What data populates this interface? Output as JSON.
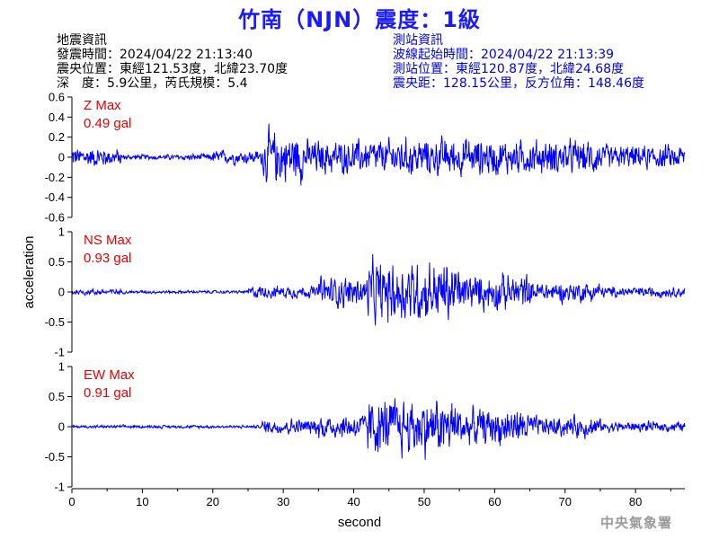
{
  "title": "竹南（NJN）震度：1級",
  "quake_info": {
    "heading": "地震資訊",
    "time": "發震時間：2024/04/22 21:13:40",
    "epicenter": "震央位置：東經121.53度，北緯23.70度",
    "depth_mag": "深　度：5.9公里，芮氏規模：5.4"
  },
  "station_info": {
    "heading": "測站資訊",
    "wave_start": "波線起始時間：2024/04/22 21:13:39",
    "location": "測站位置：東經120.87度，北緯24.68度",
    "distance": "震央距：128.15公里，反方位角：148.46度"
  },
  "credit": "中央氣象署",
  "colors": {
    "title": "#1a1aff",
    "trace": "#0000ff",
    "max_label": "#e60000",
    "station_text": "#0000e6"
  },
  "chart_data": [
    {
      "type": "line",
      "component": "Z",
      "max_label": "Z Max",
      "max_value": "0.49 gal",
      "ylim": [
        -0.6,
        0.6
      ],
      "yticks": [
        "0.6",
        "0.4",
        "0.2",
        "0",
        "-0.2",
        "-0.4",
        "-0.6"
      ],
      "xlim": [
        0,
        87
      ],
      "segments": [
        {
          "start": 0,
          "end": 5,
          "amp": 0.12
        },
        {
          "start": 5,
          "end": 7,
          "amp": 0.1
        },
        {
          "start": 7,
          "end": 15,
          "amp": 0.03
        },
        {
          "start": 15,
          "end": 20,
          "amp": 0.04
        },
        {
          "start": 20,
          "end": 25,
          "amp": 0.08
        },
        {
          "start": 25,
          "end": 27,
          "amp": 0.08
        },
        {
          "start": 27,
          "end": 33,
          "amp": 0.3
        },
        {
          "start": 33,
          "end": 45,
          "amp": 0.2
        },
        {
          "start": 45,
          "end": 60,
          "amp": 0.22
        },
        {
          "start": 60,
          "end": 75,
          "amp": 0.2
        },
        {
          "start": 75,
          "end": 87,
          "amp": 0.14
        }
      ]
    },
    {
      "type": "line",
      "component": "NS",
      "max_label": "NS Max",
      "max_value": "0.93 gal",
      "ylim": [
        -1,
        1
      ],
      "yticks": [
        "1",
        "0.5",
        "0",
        "-0.5",
        "-1"
      ],
      "xlim": [
        0,
        87
      ],
      "segments": [
        {
          "start": 0,
          "end": 7,
          "amp": 0.06
        },
        {
          "start": 7,
          "end": 25,
          "amp": 0.03
        },
        {
          "start": 25,
          "end": 35,
          "amp": 0.12
        },
        {
          "start": 35,
          "end": 42,
          "amp": 0.3
        },
        {
          "start": 42,
          "end": 55,
          "amp": 0.6
        },
        {
          "start": 55,
          "end": 65,
          "amp": 0.35
        },
        {
          "start": 65,
          "end": 75,
          "amp": 0.2
        },
        {
          "start": 75,
          "end": 87,
          "amp": 0.1
        }
      ]
    },
    {
      "type": "line",
      "component": "EW",
      "max_label": "EW Max",
      "max_value": "0.91 gal",
      "ylim": [
        -1,
        1
      ],
      "yticks": [
        "1",
        "0.5",
        "0",
        "-0.5",
        "-1"
      ],
      "xlim": [
        0,
        87
      ],
      "segments": [
        {
          "start": 0,
          "end": 27,
          "amp": 0.03
        },
        {
          "start": 27,
          "end": 35,
          "amp": 0.15
        },
        {
          "start": 35,
          "end": 42,
          "amp": 0.25
        },
        {
          "start": 42,
          "end": 55,
          "amp": 0.55
        },
        {
          "start": 55,
          "end": 65,
          "amp": 0.35
        },
        {
          "start": 65,
          "end": 75,
          "amp": 0.2
        },
        {
          "start": 75,
          "end": 87,
          "amp": 0.1
        }
      ]
    }
  ],
  "shared_axes": {
    "ylabel": "acceleration",
    "xlabel": "second",
    "xticks": [
      "0",
      "10",
      "20",
      "30",
      "40",
      "50",
      "60",
      "70",
      "80"
    ]
  }
}
